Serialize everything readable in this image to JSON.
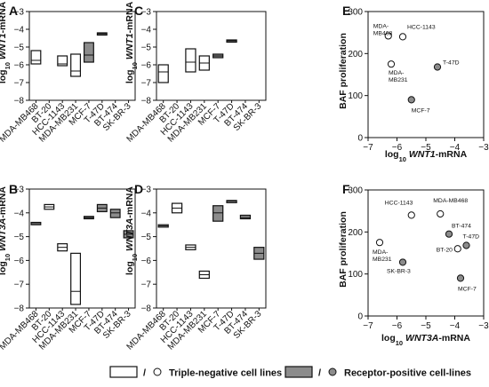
{
  "colors": {
    "negative": "#ffffff",
    "positive": "#8c8c8c",
    "stroke": "#111111"
  },
  "legend": {
    "slash": "/",
    "triple_negative": "Triple-negative cell lines",
    "receptor_positive": "Receptor-positive cell-lines"
  },
  "chart_data": [
    {
      "panel": "A",
      "type": "box",
      "ylabel_pre": "log",
      "ylabel_sub": "10",
      "ylabel_gene": "WNT1",
      "ylabel_post": "-mRNA",
      "ylim": [
        -8,
        -3
      ],
      "yticks": [
        -3,
        -4,
        -5,
        -6,
        -7,
        -8
      ],
      "categories": [
        "MDA-MB468",
        "BT-20",
        "HCC-1143",
        "MDA-MB231",
        "MCF-7",
        "T-47D",
        "BT-474",
        "SK-BR-3"
      ],
      "boxes": [
        {
          "cell": "MDA-MB468",
          "group": "triple-negative",
          "min": -5.95,
          "median": -5.75,
          "max": -5.2
        },
        {
          "cell": "HCC-1143",
          "group": "triple-negative",
          "min": -6.05,
          "median": -5.95,
          "max": -5.5
        },
        {
          "cell": "MDA-MB231",
          "group": "triple-negative",
          "min": -6.65,
          "median": -6.35,
          "max": -5.4
        },
        {
          "cell": "MCF-7",
          "group": "receptor-positive",
          "min": -5.85,
          "median": -5.45,
          "max": -4.75
        },
        {
          "cell": "T-47D",
          "group": "receptor-positive",
          "min": -4.3,
          "median": -4.25,
          "max": -4.2
        }
      ]
    },
    {
      "panel": "C",
      "type": "box",
      "ylabel_pre": "log",
      "ylabel_sub": "10",
      "ylabel_gene": "WNT1",
      "ylabel_post": "-mRNA",
      "ylim": [
        -8,
        -3
      ],
      "yticks": [
        -3,
        -4,
        -5,
        -6,
        -7,
        -8
      ],
      "categories": [
        "MDA-MB468",
        "BT-20",
        "HCC-1143",
        "MDA-MB231",
        "MCF-7",
        "T-47D",
        "BT-474",
        "SK-BR-3"
      ],
      "boxes": [
        {
          "cell": "MDA-MB468",
          "group": "triple-negative",
          "min": -7.0,
          "median": -6.4,
          "max": -6.0
        },
        {
          "cell": "HCC-1143",
          "group": "triple-negative",
          "min": -6.4,
          "median": -5.85,
          "max": -5.1
        },
        {
          "cell": "MDA-MB231",
          "group": "triple-negative",
          "min": -6.3,
          "median": -5.9,
          "max": -5.5
        },
        {
          "cell": "MCF-7",
          "group": "receptor-positive",
          "min": -5.6,
          "median": -5.5,
          "max": -5.4
        },
        {
          "cell": "T-47D",
          "group": "receptor-positive",
          "min": -4.7,
          "median": -4.65,
          "max": -4.6
        }
      ]
    },
    {
      "panel": "B",
      "type": "box",
      "ylabel_pre": "log",
      "ylabel_sub": "10",
      "ylabel_gene": "WNT3A",
      "ylabel_post": "-mRNA",
      "ylim": [
        -8,
        -3
      ],
      "yticks": [
        -3,
        -4,
        -5,
        -6,
        -7,
        -8
      ],
      "categories": [
        "MDA-MB468",
        "BT-20",
        "HCC-1143",
        "MDA-MB231",
        "MCF-7",
        "T-47D",
        "BT-474",
        "SK-BR-3"
      ],
      "boxes": [
        {
          "cell": "MDA-MB468",
          "group": "triple-negative",
          "min": -4.5,
          "median": -4.45,
          "max": -4.4
        },
        {
          "cell": "BT-20",
          "group": "triple-negative",
          "min": -3.85,
          "median": -3.75,
          "max": -3.65
        },
        {
          "cell": "HCC-1143",
          "group": "triple-negative",
          "min": -5.6,
          "median": -5.45,
          "max": -5.3
        },
        {
          "cell": "MDA-MB231",
          "group": "triple-negative",
          "min": -7.85,
          "median": -7.3,
          "max": -5.7
        },
        {
          "cell": "MCF-7",
          "group": "receptor-positive",
          "min": -4.25,
          "median": -4.2,
          "max": -4.15
        },
        {
          "cell": "T-47D",
          "group": "receptor-positive",
          "min": -3.95,
          "median": -3.8,
          "max": -3.65
        },
        {
          "cell": "BT-474",
          "group": "receptor-positive",
          "min": -4.2,
          "median": -4.0,
          "max": -3.85
        },
        {
          "cell": "SK-BR-3",
          "group": "receptor-positive",
          "min": -5.05,
          "median": -4.9,
          "max": -4.75
        }
      ]
    },
    {
      "panel": "D",
      "type": "box",
      "ylabel_pre": "log",
      "ylabel_sub": "10",
      "ylabel_gene": "WNT3A",
      "ylabel_post": "-mRNA",
      "ylim": [
        -8,
        -3
      ],
      "yticks": [
        -3,
        -4,
        -5,
        -6,
        -7,
        -8
      ],
      "categories": [
        "MDA-MB468",
        "BT-20",
        "HCC-1143",
        "MDA-MB231",
        "MCF-7",
        "T-47D",
        "BT-474",
        "SK-BR-3"
      ],
      "boxes": [
        {
          "cell": "MDA-MB468",
          "group": "triple-negative",
          "min": -4.6,
          "median": -4.55,
          "max": -4.5
        },
        {
          "cell": "BT-20",
          "group": "triple-negative",
          "min": -4.0,
          "median": -3.8,
          "max": -3.6
        },
        {
          "cell": "HCC-1143",
          "group": "triple-negative",
          "min": -5.55,
          "median": -5.45,
          "max": -5.35
        },
        {
          "cell": "MDA-MB231",
          "group": "triple-negative",
          "min": -6.75,
          "median": -6.6,
          "max": -6.45
        },
        {
          "cell": "MCF-7",
          "group": "receptor-positive",
          "min": -4.35,
          "median": -4.0,
          "max": -3.7
        },
        {
          "cell": "T-47D",
          "group": "receptor-positive",
          "min": -3.52,
          "median": -3.5,
          "max": -3.48
        },
        {
          "cell": "BT-474",
          "group": "receptor-positive",
          "min": -4.25,
          "median": -4.2,
          "max": -4.1
        },
        {
          "cell": "SK-BR-3",
          "group": "receptor-positive",
          "min": -5.95,
          "median": -5.7,
          "max": -5.45
        }
      ]
    },
    {
      "panel": "E",
      "type": "scatter",
      "xlabel_pre": "log",
      "xlabel_sub": "10",
      "xlabel_gene": "WNT1",
      "xlabel_post": "-mRNA",
      "ylabel": "BAF proliferation",
      "xlim": [
        -7,
        -3
      ],
      "xticks": [
        -7,
        -6,
        -5,
        -4,
        -3
      ],
      "ylim": [
        0,
        300
      ],
      "yticks": [
        0,
        100,
        200,
        300
      ],
      "points": [
        {
          "cell": "MDA-MB468",
          "label_lines": [
            "MDA-",
            "MB468"
          ],
          "group": "triple-negative",
          "x": -6.3,
          "y": 242
        },
        {
          "cell": "HCC-1143",
          "label_lines": [
            "HCC-1143"
          ],
          "group": "triple-negative",
          "x": -5.8,
          "y": 240
        },
        {
          "cell": "MDA-MB231",
          "label_lines": [
            "MDA-",
            "MB231"
          ],
          "group": "triple-negative",
          "x": -6.2,
          "y": 175
        },
        {
          "cell": "T-47D",
          "label_lines": [
            "T-47D"
          ],
          "group": "receptor-positive",
          "x": -4.6,
          "y": 168
        },
        {
          "cell": "MCF-7",
          "label_lines": [
            "MCF-7"
          ],
          "group": "receptor-positive",
          "x": -5.5,
          "y": 90
        }
      ]
    },
    {
      "panel": "F",
      "type": "scatter",
      "xlabel_pre": "log",
      "xlabel_sub": "10",
      "xlabel_gene": "WNT3A",
      "xlabel_post": "-mRNA",
      "ylabel": "BAF proliferation",
      "xlim": [
        -7,
        -3
      ],
      "xticks": [
        -7,
        -6,
        -5,
        -4,
        -3
      ],
      "ylim": [
        0,
        300
      ],
      "yticks": [
        0,
        100,
        200,
        300
      ],
      "points": [
        {
          "cell": "HCC-1143",
          "label_lines": [
            "HCC-1143"
          ],
          "group": "triple-negative",
          "x": -5.5,
          "y": 240
        },
        {
          "cell": "MDA-MB468",
          "label_lines": [
            "MDA-MB468"
          ],
          "group": "triple-negative",
          "x": -4.5,
          "y": 243
        },
        {
          "cell": "BT-474",
          "label_lines": [
            "BT-474"
          ],
          "group": "receptor-positive",
          "x": -4.2,
          "y": 195
        },
        {
          "cell": "T-47D",
          "label_lines": [
            "T-47D"
          ],
          "group": "receptor-positive",
          "x": -3.6,
          "y": 168
        },
        {
          "cell": "BT-20",
          "label_lines": [
            "BT-20"
          ],
          "group": "triple-negative",
          "x": -3.9,
          "y": 160
        },
        {
          "cell": "MDA-MB231",
          "label_lines": [
            "MDA-",
            "MB231"
          ],
          "group": "triple-negative",
          "x": -6.6,
          "y": 175
        },
        {
          "cell": "SK-BR-3",
          "label_lines": [
            "SK-BR-3"
          ],
          "group": "receptor-positive",
          "x": -5.8,
          "y": 128
        },
        {
          "cell": "MCF-7",
          "label_lines": [
            "MCF-7"
          ],
          "group": "receptor-positive",
          "x": -3.8,
          "y": 90
        }
      ]
    }
  ]
}
